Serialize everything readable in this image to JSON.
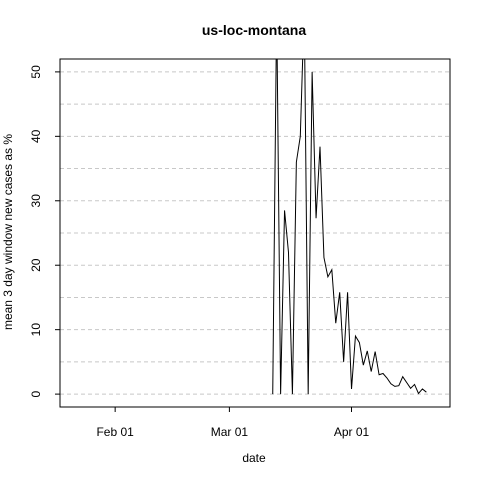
{
  "chart_data": {
    "type": "line",
    "title": "us-loc-montana",
    "xlabel": "date",
    "ylabel": "mean  3  day window new cases as %",
    "x_ticks": [
      "Feb 01",
      "Mar 01",
      "Apr 01"
    ],
    "y_ticks": [
      "0",
      "10",
      "20",
      "30",
      "40",
      "50"
    ],
    "ylim": [
      -2,
      52
    ],
    "xlim": [
      "2020-01-18",
      "2020-04-26"
    ],
    "grid": "horizontal dashed",
    "colors": {
      "line": "#000000",
      "grid": "#c8c8c8",
      "frame": "#000000"
    },
    "series": [
      {
        "x": [
          "2020-03-12",
          "2020-03-13",
          "2020-03-14",
          "2020-03-15",
          "2020-03-16",
          "2020-03-17",
          "2020-03-18",
          "2020-03-19",
          "2020-03-20",
          "2020-03-21",
          "2020-03-22",
          "2020-03-23",
          "2020-03-24",
          "2020-03-25",
          "2020-03-26",
          "2020-03-27",
          "2020-03-28",
          "2020-03-29",
          "2020-03-30",
          "2020-03-31",
          "2020-04-01",
          "2020-04-02",
          "2020-04-03",
          "2020-04-04",
          "2020-04-05",
          "2020-04-06",
          "2020-04-07",
          "2020-04-08",
          "2020-04-09",
          "2020-04-10",
          "2020-04-11",
          "2020-04-12",
          "2020-04-13",
          "2020-04-14",
          "2020-04-15",
          "2020-04-16",
          "2020-04-17",
          "2020-04-18",
          "2020-04-19",
          "2020-04-20",
          "2020-04-21",
          "2020-04-22",
          "2020-04-23"
        ],
        "values": [
          0,
          60,
          0,
          28.5,
          22,
          0,
          36,
          40,
          60,
          0,
          50,
          27.3,
          38.4,
          21.2,
          18.2,
          19.3,
          11,
          15.8,
          5,
          15.8,
          0.8,
          9,
          8,
          4.5,
          6.7,
          3.5,
          6.6,
          3,
          3.2,
          2.5,
          1.6,
          1.2,
          1.3,
          2.7,
          1.8,
          0.9,
          1.5,
          0.1,
          0.8,
          0.3,
          null,
          null,
          null
        ]
      }
    ]
  }
}
